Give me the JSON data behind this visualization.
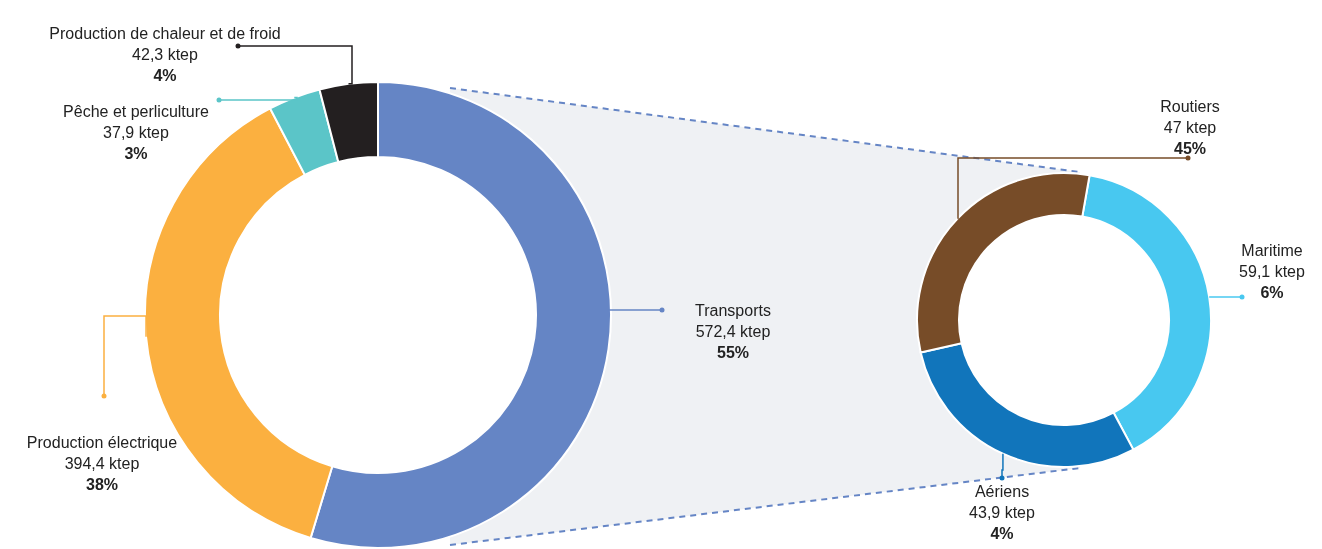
{
  "chart_data": [
    {
      "type": "donut",
      "categories": [
        "Transports",
        "Production électrique",
        "Pêche et perliculture",
        "Production de chaleur et de froid"
      ],
      "values": [
        572.4,
        394.4,
        37.9,
        42.3
      ],
      "colors": [
        "#6585c5",
        "#fbb040",
        "#5bc5c8",
        "#231f20"
      ],
      "value_labels": [
        "572,4 ktep\n55%",
        "394,4 ktep\n38%",
        "37,9 ktep\n3%",
        "42,3 ktep\n4%"
      ]
    },
    {
      "type": "donut",
      "categories": [
        "Maritime",
        "Aériens",
        "Routiers"
      ],
      "values": [
        59.1,
        43.9,
        47
      ],
      "colors": [
        "#48c8f0",
        "#1175bb",
        "#774c28"
      ],
      "value_labels": [
        "59,1 ktep\n6%",
        "43,9 ktep\n4%",
        "47 ktep\n45%"
      ]
    }
  ]
}
